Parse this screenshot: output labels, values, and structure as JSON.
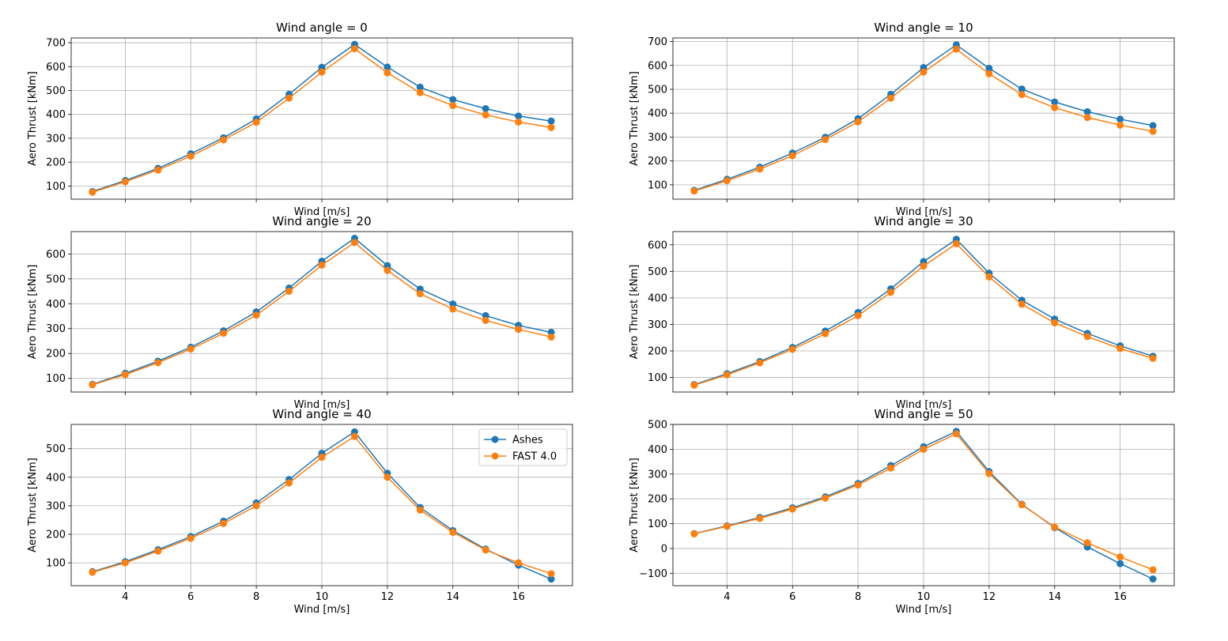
{
  "chart_data": [
    {
      "type": "line",
      "title": "Wind angle = 0",
      "xlabel": "Wind [m/s]",
      "ylabel": "Aero Thrust [kNm]",
      "xlim": [
        2.35,
        17.65
      ],
      "ylim": [
        45,
        720
      ],
      "yticks": [
        100,
        200,
        300,
        400,
        500,
        600,
        700
      ],
      "x": [
        3,
        4,
        5,
        6,
        7,
        8,
        9,
        10,
        11,
        12,
        13,
        14,
        15,
        16,
        17
      ],
      "series": [
        {
          "name": "Ashes",
          "values": [
            77,
            123,
            174,
            235,
            302,
            381,
            484,
            597,
            693,
            598,
            514,
            462,
            424,
            393,
            372
          ]
        },
        {
          "name": "FAST 4.0",
          "values": [
            74,
            118,
            167,
            225,
            293,
            367,
            468,
            577,
            675,
            574,
            491,
            437,
            398,
            368,
            345
          ]
        }
      ],
      "grid": true
    },
    {
      "type": "line",
      "title": "Wind angle = 10",
      "xlabel": "Wind [m/s]",
      "ylabel": "Aero Thrust [kNm]",
      "xlim": [
        2.35,
        17.65
      ],
      "ylim": [
        40,
        715
      ],
      "yticks": [
        100,
        200,
        300,
        400,
        500,
        600,
        700
      ],
      "x": [
        3,
        4,
        5,
        6,
        7,
        8,
        9,
        10,
        11,
        12,
        13,
        14,
        15,
        16,
        17
      ],
      "series": [
        {
          "name": "Ashes",
          "values": [
            77,
            123,
            174,
            233,
            299,
            377,
            479,
            591,
            686,
            588,
            501,
            447,
            406,
            375,
            348
          ]
        },
        {
          "name": "FAST 4.0",
          "values": [
            74,
            117,
            166,
            222,
            290,
            364,
            463,
            572,
            668,
            565,
            478,
            423,
            382,
            350,
            324
          ]
        }
      ],
      "grid": true
    },
    {
      "type": "line",
      "title": "Wind angle = 20",
      "xlabel": "Wind [m/s]",
      "ylabel": "Aero Thrust [kNm]",
      "xlim": [
        2.35,
        17.65
      ],
      "ylim": [
        45,
        690
      ],
      "yticks": [
        100,
        200,
        300,
        400,
        500,
        600
      ],
      "x": [
        3,
        4,
        5,
        6,
        7,
        8,
        9,
        10,
        11,
        12,
        13,
        14,
        15,
        16,
        17
      ],
      "series": [
        {
          "name": "Ashes",
          "values": [
            76,
            120,
            169,
            225,
            291,
            367,
            463,
            571,
            663,
            553,
            459,
            399,
            352,
            313,
            285
          ]
        },
        {
          "name": "FAST 4.0",
          "values": [
            74,
            115,
            163,
            218,
            281,
            354,
            450,
            555,
            646,
            534,
            440,
            379,
            333,
            297,
            266
          ]
        }
      ],
      "grid": true
    },
    {
      "type": "line",
      "title": "Wind angle = 30",
      "xlabel": "Wind [m/s]",
      "ylabel": "Aero Thrust [kNm]",
      "xlim": [
        2.35,
        17.65
      ],
      "ylim": [
        45,
        650
      ],
      "yticks": [
        100,
        200,
        300,
        400,
        500,
        600
      ],
      "x": [
        3,
        4,
        5,
        6,
        7,
        8,
        9,
        10,
        11,
        12,
        13,
        14,
        15,
        16,
        17
      ],
      "series": [
        {
          "name": "Ashes",
          "values": [
            73,
            114,
            160,
            213,
            275,
            345,
            434,
            537,
            621,
            493,
            391,
            320,
            266,
            219,
            180
          ]
        },
        {
          "name": "FAST 4.0",
          "values": [
            71,
            110,
            155,
            206,
            265,
            333,
            421,
            520,
            604,
            479,
            376,
            306,
            254,
            209,
            172
          ]
        }
      ],
      "grid": true
    },
    {
      "type": "line",
      "title": "Wind angle = 40",
      "xlabel": "Wind [m/s]",
      "ylabel": "Aero Thrust [kNm]",
      "xlim": [
        2.35,
        17.65
      ],
      "ylim": [
        20,
        585
      ],
      "yticks": [
        100,
        200,
        300,
        400,
        500
      ],
      "x": [
        3,
        4,
        5,
        6,
        7,
        8,
        9,
        10,
        11,
        12,
        13,
        14,
        15,
        16,
        17
      ],
      "series": [
        {
          "name": "Ashes",
          "values": [
            69,
            104,
            146,
            192,
            246,
            310,
            392,
            484,
            559,
            414,
            294,
            213,
            148,
            92,
            43
          ]
        },
        {
          "name": "FAST 4.0",
          "values": [
            67,
            100,
            141,
            186,
            238,
            300,
            380,
            470,
            543,
            400,
            285,
            207,
            145,
            100,
            62
          ]
        }
      ],
      "grid": true,
      "legend": "upper right"
    },
    {
      "type": "line",
      "title": "Wind angle = 50",
      "xlabel": "Wind [m/s]",
      "ylabel": "Aero Thrust [kNm]",
      "xlim": [
        2.35,
        17.65
      ],
      "ylim": [
        -150,
        500
      ],
      "yticks": [
        -100,
        0,
        100,
        200,
        300,
        400,
        500
      ],
      "x": [
        3,
        4,
        5,
        6,
        7,
        8,
        9,
        10,
        11,
        12,
        13,
        14,
        15,
        16,
        17
      ],
      "series": [
        {
          "name": "Ashes",
          "values": [
            60,
            91,
            125,
            164,
            208,
            262,
            334,
            410,
            472,
            310,
            178,
            84,
            6,
            -61,
            -123
          ]
        },
        {
          "name": "FAST 4.0",
          "values": [
            59,
            89,
            121,
            159,
            203,
            256,
            324,
            400,
            462,
            302,
            176,
            86,
            23,
            -34,
            -86
          ]
        }
      ],
      "grid": true
    }
  ],
  "xticks": [
    4,
    6,
    8,
    10,
    12,
    14,
    16
  ],
  "colors": {
    "Ashes": "#1f77b4",
    "FAST 4.0": "#ff7f0e",
    "grid": "#b0b0b0"
  }
}
